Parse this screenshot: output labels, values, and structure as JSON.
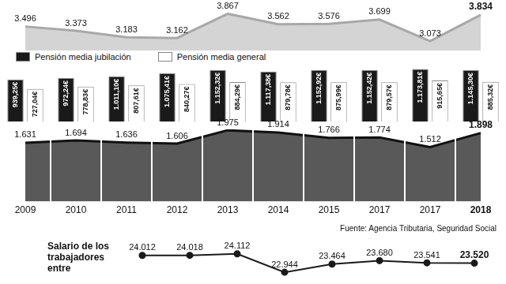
{
  "chart_data": [
    {
      "type": "area",
      "categories": [
        "2009",
        "2010",
        "2011",
        "2012",
        "2013",
        "2014",
        "2015",
        "2017",
        "2017",
        "2018"
      ],
      "values": [
        3496,
        3373,
        3183,
        3162,
        3867,
        3562,
        3576,
        3699,
        3073,
        3834
      ],
      "value_labels": [
        "3.496",
        "3.373",
        "3.183",
        "3.162",
        "3.867",
        "3.562",
        "3.576",
        "3.699",
        "3.073",
        "3.834"
      ],
      "color": "#d4d4d4",
      "ylim": [
        2800,
        3900
      ],
      "tick_labels": false,
      "grid": false,
      "data_labels": true
    },
    {
      "type": "bar",
      "categories": [
        "2009",
        "2010",
        "2011",
        "2012",
        "2013",
        "2014",
        "2015",
        "2017",
        "2017",
        "2018"
      ],
      "series": [
        {
          "name": "Pensión media jubilación",
          "color": "#1a1a1a",
          "values": [
            939.25,
            972.24,
            1011.1,
            1075.41,
            1152.32,
            1117.38,
            1152.92,
            1152.42,
            1173.81,
            1145.3
          ],
          "value_labels": [
            "939,25€",
            "972,24€",
            "1.011,10€",
            "1.075,41€",
            "1.152,32€",
            "1.117,38€",
            "1.152,92€",
            "1.152,42€",
            "1.173,81€",
            "1.145,30€"
          ]
        },
        {
          "name": "Pensión media general",
          "color": "#ffffff",
          "values": [
            727.04,
            778.83,
            807.61,
            840.27,
            884.29,
            879.78,
            875.99,
            879.57,
            915.65,
            885.32
          ],
          "value_labels": [
            "727,04€",
            "778,83€",
            "807,61€",
            "840,27€",
            "884,29€",
            "879,78€",
            "875,99€",
            "879,57€",
            "915,65€",
            "885,32€"
          ]
        }
      ],
      "ylim": [
        0,
        1200
      ],
      "legend": "top-left",
      "tick_labels": false,
      "grid": false,
      "data_labels": true
    },
    {
      "type": "area",
      "categories": [
        "2009",
        "2010",
        "2011",
        "2012",
        "2013",
        "2014",
        "2015",
        "2017",
        "2017",
        "2018"
      ],
      "values": [
        1631,
        1694,
        1636,
        1606,
        1975,
        1914,
        1766,
        1774,
        1512,
        1898
      ],
      "value_labels": [
        "1.631",
        "1.694",
        "1.636",
        "1.606",
        "1.975",
        "1.914",
        "1.766",
        "1.774",
        "1.512",
        "1.898"
      ],
      "color": "#595959",
      "ylim": [
        0,
        2000
      ],
      "tick_labels": "x",
      "grid": false,
      "data_labels": true,
      "annotations": [
        "Fuente: Agencia Tributaria, Seguridad Social"
      ]
    },
    {
      "type": "line",
      "title": "Salario de los trabajadores entre",
      "categories": [
        null,
        null,
        null,
        null,
        null,
        null,
        null,
        null
      ],
      "values": [
        24012,
        24018,
        24112,
        22944,
        23464,
        23680,
        23541,
        23520
      ],
      "value_labels": [
        "24.012",
        "24.018",
        "24.112",
        "22.944",
        "23.464",
        "23.680",
        "23.541",
        "23.520"
      ],
      "color": "#1a1a1a",
      "marker": "circle",
      "ylim": [
        22500,
        24500
      ],
      "tick_labels": false,
      "grid": false,
      "data_labels": true
    }
  ]
}
